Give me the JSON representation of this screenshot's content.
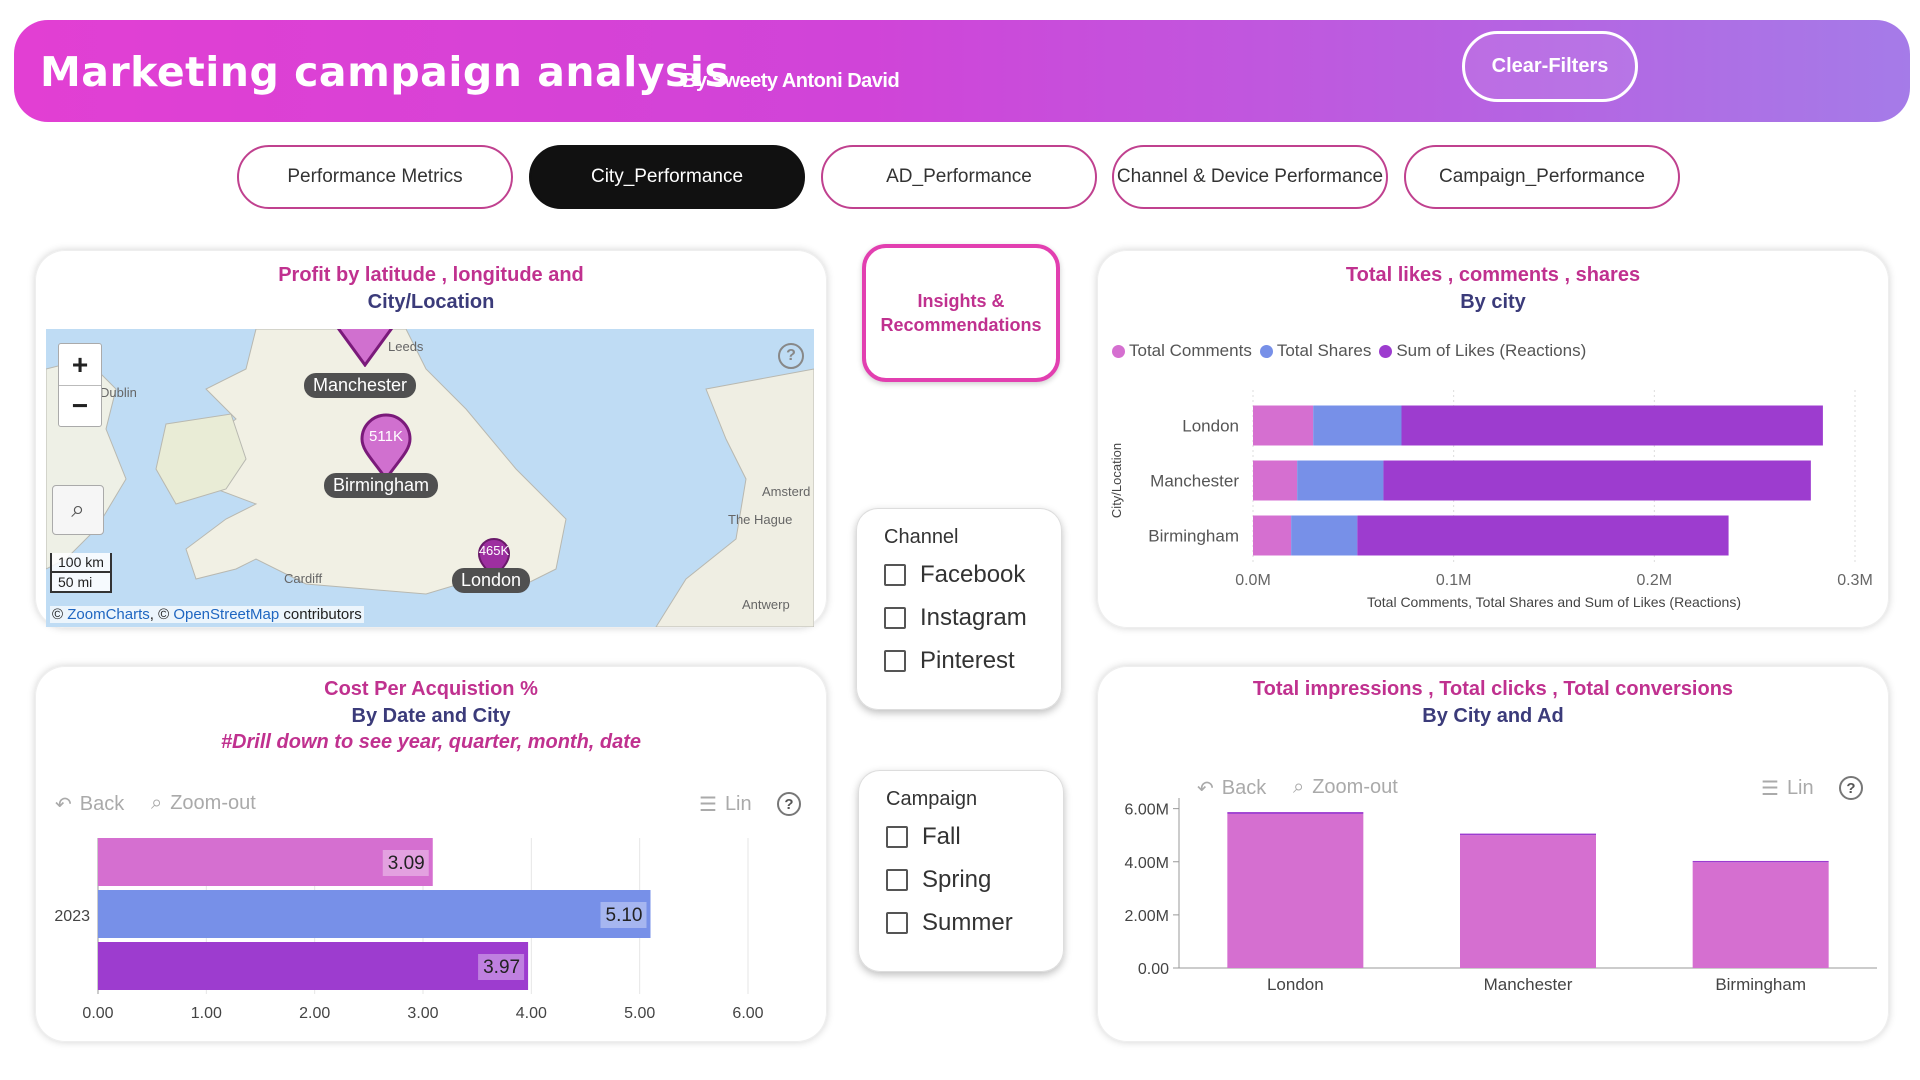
{
  "header": {
    "title": "Marketing campaign analysis",
    "subtitle": "By Sweety Antoni David",
    "clear_filters": "Clear-Filters"
  },
  "tabs": [
    {
      "label": "Performance Metrics",
      "active": false
    },
    {
      "label": "City_Performance",
      "active": true
    },
    {
      "label": "AD_Performance",
      "active": false
    },
    {
      "label": "Channel & Device Performance",
      "active": false
    },
    {
      "label": "Campaign_Performance",
      "active": false
    }
  ],
  "map_card": {
    "title_line1": "Profit by latitude , longitude and",
    "title_line2": "City/Location",
    "zoom_in": "+",
    "zoom_out": "−",
    "help": "?",
    "scale_km": "100 km",
    "scale_mi": "50 mi",
    "attribution_prefix": "© ",
    "attribution_zc": "ZoomCharts",
    "attribution_mid": ", © ",
    "attribution_osm": "OpenStreetMap",
    "attribution_suffix": " contributors",
    "places": {
      "leeds": "Leeds",
      "dublin": "Dublin",
      "amsterdam": "Amsterd",
      "hague": "The Hague",
      "cardiff": "Cardiff",
      "antwerp": "Antwerp"
    },
    "markers": [
      {
        "city": "Manchester",
        "value": ""
      },
      {
        "city": "Birmingham",
        "value": "511K"
      },
      {
        "city": "London",
        "value": "465K"
      }
    ]
  },
  "insights_button": {
    "line1": "Insights &",
    "line2": "Recommendations"
  },
  "channel_slicer": {
    "title": "Channel",
    "options": [
      "Facebook",
      "Instagram",
      "Pinterest"
    ]
  },
  "campaign_slicer": {
    "title": "Campaign",
    "options": [
      "Fall",
      "Spring",
      "Summer"
    ]
  },
  "likes_card": {
    "title_line1": "Total likes , comments , shares",
    "title_line2": "By city"
  },
  "cpa_card": {
    "title_line1": "Cost Per Acquistion %",
    "title_line2": "By Date and City",
    "title_line3": "#Drill down to see year, quarter, month, date",
    "back": "Back",
    "zoom_out": "Zoom-out",
    "lin": "Lin",
    "help": "?"
  },
  "impressions_card": {
    "title_line1": "Total impressions , Total clicks , Total conversions",
    "title_line2": "By City and Ad",
    "back": "Back",
    "zoom_out": "Zoom-out",
    "lin": "Lin",
    "help": "?"
  },
  "colors": {
    "pink": "#d56fd0",
    "blue": "#7790e8",
    "purple": "#9d3ccf",
    "accent": "#c0318f",
    "navy": "#3b3b7a"
  },
  "chart_data": [
    {
      "type": "bar",
      "orientation": "horizontal",
      "stacked": true,
      "categories": [
        "London",
        "Manchester",
        "Birmingham"
      ],
      "series": [
        {
          "name": "Total Comments",
          "values": [
            0.03,
            0.022,
            0.019
          ]
        },
        {
          "name": "Total Shares",
          "values": [
            0.044,
            0.043,
            0.033
          ]
        },
        {
          "name": "Sum of Likes (Reactions)",
          "values": [
            0.21,
            0.213,
            0.185
          ]
        }
      ],
      "xlabel": "Total Comments, Total Shares and Sum of Likes (Reactions)",
      "ylabel": "City/Location",
      "tick_labels": [
        "0.0M",
        "0.1M",
        "0.2M",
        "0.3M"
      ],
      "xlim": [
        0,
        0.3
      ],
      "legend": "top-left"
    },
    {
      "type": "bar",
      "orientation": "horizontal",
      "categories": [
        "2023"
      ],
      "series": [
        {
          "name": "",
          "values": [
            3.09
          ]
        },
        {
          "name": "",
          "values": [
            5.1
          ]
        },
        {
          "name": "",
          "values": [
            3.97
          ]
        }
      ],
      "tick_labels": [
        "0.00",
        "1.00",
        "2.00",
        "3.00",
        "4.00",
        "5.00",
        "6.00"
      ],
      "xlim": [
        0,
        6
      ]
    },
    {
      "type": "bar",
      "stacked": true,
      "categories": [
        "London",
        "Manchester",
        "Birmingham"
      ],
      "series": [
        {
          "name": "",
          "values": [
            5.8,
            5.0,
            3.98
          ]
        },
        {
          "name": "",
          "values": [
            0.07,
            0.06,
            0.05
          ]
        }
      ],
      "tick_labels": [
        "0.00",
        "2.00M",
        "4.00M",
        "6.00M"
      ],
      "ylim": [
        0,
        6.4
      ]
    }
  ]
}
